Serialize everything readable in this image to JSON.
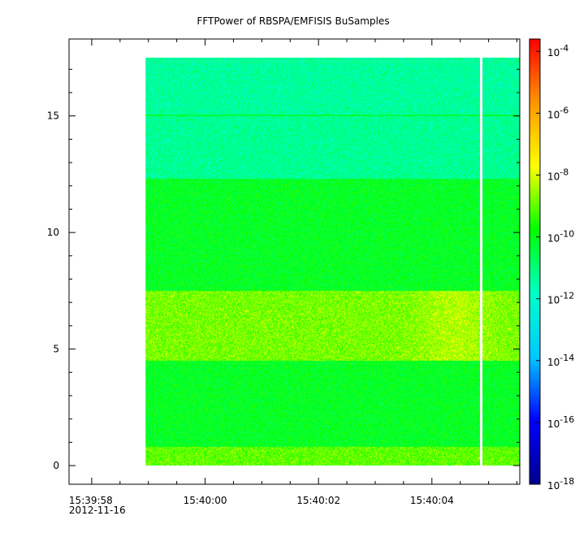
{
  "chart_data": {
    "type": "heatmap",
    "title": "FFTPower of RBSPA/EMFISIS  BuSamples",
    "xlabel": "",
    "ylabel": "",
    "x_ticks": [
      {
        "value": 0,
        "label": "15:39:58",
        "label2": "2012-11-16"
      },
      {
        "value": 2,
        "label": "15:40:00",
        "label2": ""
      },
      {
        "value": 4,
        "label": "15:40:02",
        "label2": ""
      },
      {
        "value": 6,
        "label": "15:40:04",
        "label2": ""
      }
    ],
    "x_minor_ticks": [
      0.5,
      1,
      1.5,
      2.5,
      3,
      3.5,
      4.5,
      5,
      5.5,
      6.5,
      7,
      7.5
    ],
    "xlim": [
      -0.4,
      7.55
    ],
    "y_ticks": [
      0,
      5,
      10,
      15
    ],
    "y_minor_ticks": [
      1,
      2,
      3,
      4,
      6,
      7,
      8,
      9,
      11,
      12,
      13,
      14,
      16,
      17
    ],
    "ylim": [
      -0.8,
      18.3
    ],
    "data_extent": {
      "x_start": 0.95,
      "x_end": 7.55,
      "y_start": 0,
      "y_end": 17.5
    },
    "gap": {
      "x": 6.87
    },
    "y_units": "",
    "power_bands": [
      {
        "y_from": 0.0,
        "y_to": 0.8,
        "log10_power": -9.0
      },
      {
        "y_from": 0.8,
        "y_to": 4.5,
        "log10_power": -10.1
      },
      {
        "y_from": 4.5,
        "y_to": 7.5,
        "log10_power": -8.8
      },
      {
        "y_from": 7.5,
        "y_to": 12.3,
        "log10_power": -10.1
      },
      {
        "y_from": 12.3,
        "y_to": 15.0,
        "log10_power": -11.3
      },
      {
        "y_from": 15.0,
        "y_to": 15.06,
        "log10_power": -10.3
      },
      {
        "y_from": 15.06,
        "y_to": 17.5,
        "log10_power": -11.4
      }
    ],
    "colorbar": {
      "scale": "log",
      "range": [
        -18,
        -3.6
      ],
      "ticks": [
        {
          "exp": -4,
          "base": "10",
          "sup": "-4"
        },
        {
          "exp": -6,
          "base": "10",
          "sup": "-6"
        },
        {
          "exp": -8,
          "base": "10",
          "sup": "-8"
        },
        {
          "exp": -10,
          "base": "10",
          "sup": "-10"
        },
        {
          "exp": -12,
          "base": "10",
          "sup": "-12"
        },
        {
          "exp": -14,
          "base": "10",
          "sup": "-14"
        },
        {
          "exp": -16,
          "base": "10",
          "sup": "-16"
        },
        {
          "exp": -18,
          "base": "10",
          "sup": "-18"
        }
      ],
      "colors": [
        "#00008c",
        "#0000ff",
        "#00c8ff",
        "#00ffc8",
        "#00ff00",
        "#ffff00",
        "#ff9600",
        "#ff0000"
      ]
    }
  }
}
